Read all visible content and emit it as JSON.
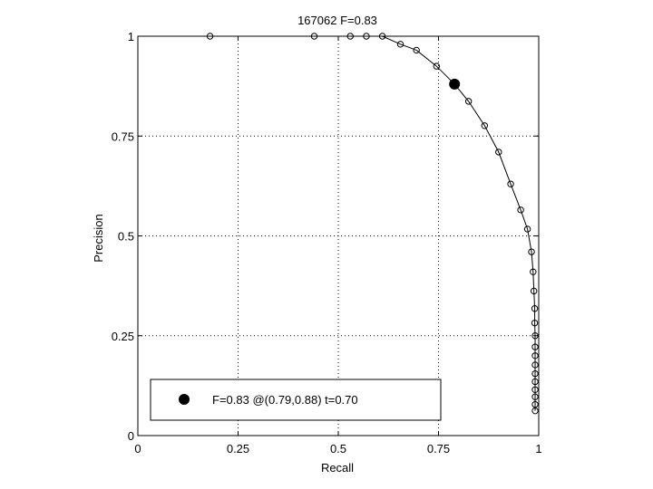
{
  "chart_data": {
    "type": "line",
    "title": "167062 F=0.83",
    "xlabel": "Recall",
    "ylabel": "Precision",
    "xlim": [
      0,
      1
    ],
    "ylim": [
      0,
      1
    ],
    "grid": true,
    "grid_style": "dotted",
    "x_ticks": [
      "0",
      "0.25",
      "0.5",
      "0.75",
      "1"
    ],
    "y_ticks": [
      "0",
      "0.25",
      "0.5",
      "0.75",
      "1"
    ],
    "x_tick_values": [
      0,
      0.25,
      0.5,
      0.75,
      1
    ],
    "y_tick_values": [
      0,
      0.25,
      0.5,
      0.75,
      1
    ],
    "legend_position": "lower-left",
    "series": [
      {
        "marker": "open-circle",
        "color": "#000000",
        "points": [
          [
            0.18,
            1.0
          ],
          [
            0.44,
            1.0
          ],
          [
            0.53,
            1.0
          ],
          [
            0.57,
            1.0
          ],
          [
            0.61,
            1.0
          ],
          [
            0.655,
            0.98
          ],
          [
            0.695,
            0.965
          ],
          [
            0.745,
            0.925
          ],
          [
            0.79,
            0.88
          ],
          [
            0.825,
            0.837
          ],
          [
            0.865,
            0.776
          ],
          [
            0.9,
            0.71
          ],
          [
            0.93,
            0.63
          ],
          [
            0.955,
            0.565
          ],
          [
            0.972,
            0.517
          ],
          [
            0.982,
            0.46
          ],
          [
            0.986,
            0.41
          ],
          [
            0.988,
            0.362
          ],
          [
            0.99,
            0.318
          ],
          [
            0.99,
            0.282
          ],
          [
            0.991,
            0.25
          ],
          [
            0.991,
            0.222
          ],
          [
            0.991,
            0.2
          ],
          [
            0.991,
            0.177
          ],
          [
            0.991,
            0.155
          ],
          [
            0.991,
            0.135
          ],
          [
            0.991,
            0.115
          ],
          [
            0.991,
            0.097
          ],
          [
            0.991,
            0.078
          ],
          [
            0.991,
            0.062
          ]
        ]
      }
    ],
    "highlight_point": {
      "x": 0.79,
      "y": 0.88,
      "marker": "filled-circle",
      "color": "#000000"
    },
    "legend_label": "F=0.83 @(0.79,0.88) t=0.70"
  }
}
